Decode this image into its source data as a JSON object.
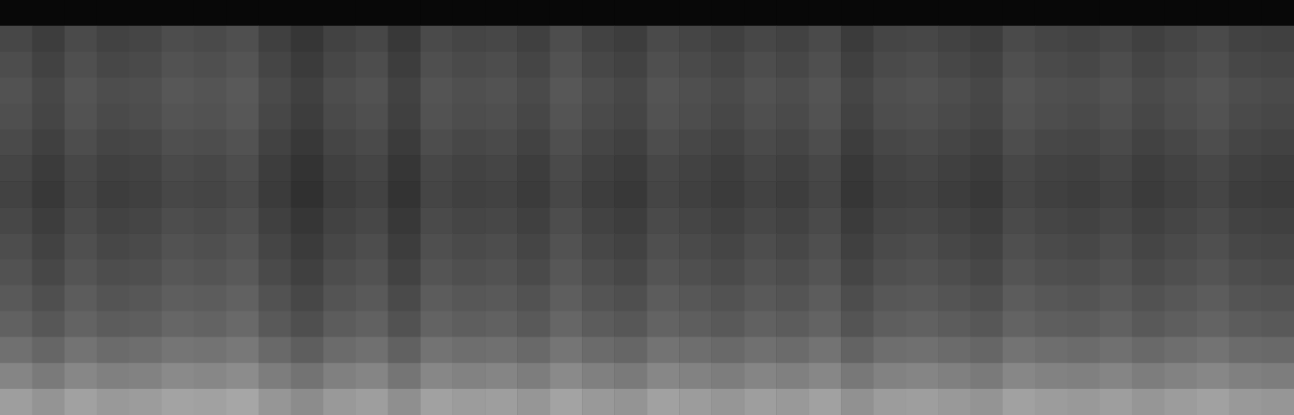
{
  "chart_data": {
    "type": "heatmap",
    "tick_labels": false,
    "zlim": [
      0,
      100
    ],
    "cells": [
      [
        3,
        3,
        3,
        3,
        3,
        3,
        3,
        3,
        3,
        3,
        3,
        3,
        3,
        3,
        3,
        3,
        3,
        3,
        3,
        3,
        3,
        3,
        3,
        3,
        3,
        3,
        3,
        3,
        3,
        3,
        3,
        3,
        3,
        3,
        3,
        3,
        3,
        3,
        3,
        3
      ],
      [
        28,
        24,
        29,
        26,
        27,
        30,
        29,
        31,
        25,
        21,
        26,
        28,
        22,
        29,
        27,
        28,
        25,
        30,
        26,
        24,
        29,
        27,
        25,
        28,
        26,
        29,
        23,
        27,
        28,
        26,
        24,
        29,
        27,
        26,
        28,
        25,
        27,
        29,
        26,
        25
      ],
      [
        30,
        26,
        31,
        28,
        29,
        32,
        31,
        33,
        27,
        23,
        28,
        30,
        24,
        31,
        29,
        30,
        27,
        32,
        28,
        26,
        31,
        29,
        27,
        30,
        28,
        31,
        25,
        29,
        30,
        28,
        26,
        31,
        29,
        28,
        30,
        27,
        29,
        31,
        28,
        27
      ],
      [
        32,
        28,
        33,
        30,
        31,
        34,
        33,
        35,
        29,
        25,
        30,
        32,
        26,
        33,
        31,
        32,
        29,
        34,
        30,
        28,
        33,
        31,
        29,
        32,
        30,
        33,
        27,
        31,
        32,
        30,
        28,
        33,
        31,
        30,
        32,
        29,
        31,
        33,
        30,
        29
      ],
      [
        31,
        27,
        32,
        29,
        30,
        33,
        32,
        34,
        28,
        24,
        29,
        31,
        25,
        32,
        30,
        31,
        28,
        33,
        29,
        27,
        32,
        30,
        28,
        31,
        29,
        32,
        26,
        30,
        31,
        29,
        27,
        32,
        30,
        29,
        31,
        28,
        30,
        32,
        29,
        28
      ],
      [
        29,
        25,
        30,
        27,
        28,
        31,
        30,
        32,
        26,
        22,
        27,
        29,
        23,
        30,
        28,
        29,
        26,
        31,
        27,
        25,
        30,
        28,
        26,
        29,
        27,
        30,
        24,
        28,
        29,
        27,
        25,
        30,
        28,
        27,
        29,
        26,
        28,
        30,
        27,
        26
      ],
      [
        27,
        23,
        28,
        25,
        26,
        29,
        28,
        30,
        24,
        20,
        25,
        27,
        21,
        28,
        26,
        27,
        24,
        29,
        25,
        23,
        28,
        26,
        24,
        27,
        25,
        28,
        22,
        26,
        27,
        25,
        23,
        28,
        26,
        25,
        27,
        24,
        26,
        28,
        25,
        24
      ],
      [
        26,
        22,
        27,
        24,
        25,
        28,
        27,
        29,
        23,
        19,
        24,
        26,
        20,
        27,
        25,
        26,
        23,
        28,
        24,
        22,
        27,
        25,
        23,
        26,
        24,
        27,
        21,
        25,
        26,
        24,
        22,
        27,
        25,
        24,
        26,
        23,
        25,
        27,
        24,
        23
      ],
      [
        28,
        24,
        29,
        26,
        27,
        30,
        29,
        31,
        25,
        21,
        26,
        28,
        22,
        29,
        27,
        28,
        25,
        30,
        26,
        24,
        29,
        27,
        25,
        28,
        26,
        29,
        23,
        27,
        28,
        26,
        24,
        29,
        27,
        26,
        28,
        25,
        27,
        29,
        26,
        25
      ],
      [
        30,
        26,
        31,
        28,
        29,
        32,
        31,
        33,
        27,
        23,
        28,
        30,
        24,
        31,
        29,
        30,
        27,
        32,
        28,
        26,
        31,
        29,
        27,
        30,
        28,
        31,
        25,
        29,
        30,
        28,
        26,
        31,
        29,
        28,
        30,
        27,
        29,
        31,
        28,
        27
      ],
      [
        32,
        28,
        33,
        30,
        31,
        34,
        33,
        35,
        29,
        25,
        30,
        32,
        26,
        33,
        31,
        32,
        29,
        34,
        30,
        28,
        33,
        31,
        29,
        32,
        30,
        33,
        27,
        31,
        32,
        30,
        28,
        33,
        31,
        30,
        32,
        29,
        31,
        33,
        30,
        29
      ],
      [
        35,
        31,
        36,
        33,
        34,
        37,
        36,
        38,
        32,
        28,
        33,
        35,
        29,
        36,
        34,
        35,
        32,
        37,
        33,
        31,
        36,
        34,
        32,
        35,
        33,
        36,
        30,
        34,
        35,
        33,
        31,
        36,
        34,
        33,
        35,
        32,
        34,
        36,
        33,
        32
      ],
      [
        38,
        34,
        39,
        36,
        37,
        40,
        39,
        41,
        35,
        31,
        36,
        38,
        32,
        39,
        37,
        38,
        35,
        40,
        36,
        34,
        39,
        37,
        35,
        38,
        36,
        39,
        33,
        37,
        38,
        36,
        34,
        39,
        37,
        36,
        38,
        35,
        37,
        39,
        36,
        35
      ],
      [
        44,
        40,
        45,
        42,
        43,
        46,
        45,
        47,
        41,
        37,
        42,
        44,
        38,
        45,
        43,
        44,
        41,
        46,
        42,
        40,
        45,
        43,
        41,
        44,
        42,
        45,
        39,
        43,
        44,
        42,
        40,
        45,
        43,
        42,
        44,
        41,
        43,
        45,
        42,
        41
      ],
      [
        52,
        48,
        53,
        50,
        51,
        54,
        53,
        55,
        49,
        45,
        50,
        52,
        46,
        53,
        51,
        52,
        49,
        54,
        50,
        48,
        53,
        51,
        49,
        52,
        50,
        53,
        47,
        51,
        52,
        50,
        48,
        53,
        51,
        50,
        52,
        49,
        51,
        53,
        50,
        49
      ],
      [
        62,
        58,
        63,
        60,
        61,
        64,
        63,
        65,
        59,
        55,
        60,
        62,
        56,
        63,
        61,
        62,
        59,
        64,
        60,
        58,
        63,
        61,
        59,
        62,
        60,
        63,
        57,
        61,
        62,
        60,
        58,
        63,
        61,
        60,
        62,
        59,
        61,
        63,
        60,
        59
      ]
    ]
  }
}
